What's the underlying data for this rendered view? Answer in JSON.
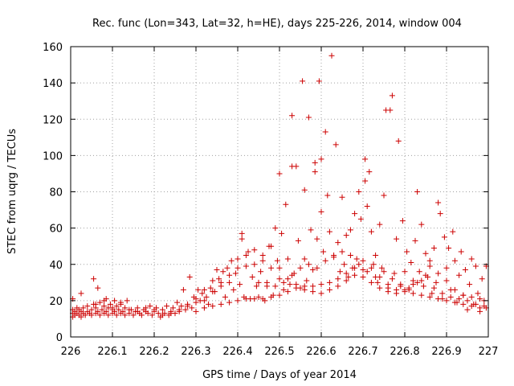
{
  "chart_data": {
    "type": "scatter",
    "title": "Rec. func (Lon=343, Lat=32, h=HE), days 225-226, 2014, window 004",
    "xlabel": "GPS time / Days of year 2014",
    "ylabel": "STEC from uqrg / TECUs",
    "xlim": [
      226,
      227
    ],
    "ylim": [
      0,
      160
    ],
    "xticks": [
      "226",
      "226.1",
      "226.2",
      "226.3",
      "226.4",
      "226.5",
      "226.6",
      "226.7",
      "226.8",
      "226.9",
      "227"
    ],
    "yticks": [
      "0",
      "20",
      "40",
      "60",
      "80",
      "100",
      "120",
      "140",
      "160"
    ],
    "grid": true,
    "marker": "plus",
    "color": "#cc0000",
    "points": [
      [
        226.005,
        11
      ],
      [
        226.005,
        13
      ],
      [
        226.005,
        15
      ],
      [
        226.005,
        21
      ],
      [
        226.01,
        12
      ],
      [
        226.01,
        14
      ],
      [
        226.015,
        13
      ],
      [
        226.015,
        16
      ],
      [
        226.02,
        12
      ],
      [
        226.02,
        15
      ],
      [
        226.025,
        11
      ],
      [
        226.025,
        14
      ],
      [
        226.025,
        24
      ],
      [
        226.03,
        13
      ],
      [
        226.03,
        16
      ],
      [
        226.035,
        12
      ],
      [
        226.04,
        14
      ],
      [
        226.04,
        17
      ],
      [
        226.045,
        13
      ],
      [
        226.05,
        12
      ],
      [
        226.05,
        15
      ],
      [
        226.055,
        32
      ],
      [
        226.055,
        18
      ],
      [
        226.06,
        13
      ],
      [
        226.06,
        16
      ],
      [
        226.065,
        14
      ],
      [
        226.065,
        27
      ],
      [
        226.07,
        12
      ],
      [
        226.07,
        19
      ],
      [
        226.075,
        15
      ],
      [
        226.08,
        13
      ],
      [
        226.08,
        17
      ],
      [
        226.085,
        14
      ],
      [
        226.085,
        21
      ],
      [
        226.09,
        12
      ],
      [
        226.09,
        16
      ],
      [
        226.095,
        18
      ],
      [
        226.1,
        13
      ],
      [
        226.1,
        15
      ],
      [
        226.105,
        14
      ],
      [
        226.105,
        20
      ],
      [
        226.11,
        12
      ],
      [
        226.11,
        17
      ],
      [
        226.115,
        15
      ],
      [
        226.12,
        13
      ],
      [
        226.12,
        19
      ],
      [
        226.125,
        14
      ],
      [
        226.13,
        12
      ],
      [
        226.13,
        16
      ],
      [
        226.135,
        20
      ],
      [
        226.14,
        13
      ],
      [
        226.145,
        15
      ],
      [
        226.15,
        12
      ],
      [
        226.155,
        14
      ],
      [
        226.16,
        16
      ],
      [
        226.165,
        13
      ],
      [
        226.17,
        12
      ],
      [
        226.175,
        15
      ],
      [
        226.18,
        14
      ],
      [
        226.185,
        13
      ],
      [
        226.19,
        17
      ],
      [
        226.195,
        12
      ],
      [
        226.2,
        14
      ],
      [
        226.205,
        16
      ],
      [
        226.21,
        13
      ],
      [
        226.215,
        11
      ],
      [
        226.22,
        15
      ],
      [
        226.225,
        13
      ],
      [
        226.23,
        17
      ],
      [
        226.235,
        12
      ],
      [
        226.24,
        14
      ],
      [
        226.245,
        16
      ],
      [
        226.25,
        13
      ],
      [
        226.255,
        19
      ],
      [
        226.26,
        14
      ],
      [
        226.265,
        17
      ],
      [
        226.27,
        26
      ],
      [
        226.275,
        15
      ],
      [
        226.28,
        18
      ],
      [
        226.285,
        33
      ],
      [
        226.29,
        16
      ],
      [
        226.295,
        22
      ],
      [
        226.3,
        19
      ],
      [
        226.305,
        26
      ],
      [
        226.31,
        20
      ],
      [
        226.315,
        24
      ],
      [
        226.32,
        26
      ],
      [
        226.325,
        22
      ],
      [
        226.33,
        18
      ],
      [
        226.335,
        27
      ],
      [
        226.34,
        31
      ],
      [
        226.345,
        25
      ],
      [
        226.35,
        37
      ],
      [
        226.355,
        32
      ],
      [
        226.36,
        28
      ],
      [
        226.365,
        36
      ],
      [
        226.37,
        22
      ],
      [
        226.375,
        38
      ],
      [
        226.38,
        30
      ],
      [
        226.385,
        42
      ],
      [
        226.39,
        26
      ],
      [
        226.395,
        35
      ],
      [
        226.4,
        43
      ],
      [
        226.405,
        29
      ],
      [
        226.41,
        57
      ],
      [
        226.41,
        54
      ],
      [
        226.415,
        22
      ],
      [
        226.42,
        39
      ],
      [
        226.425,
        47
      ],
      [
        226.43,
        21
      ],
      [
        226.435,
        33
      ],
      [
        226.44,
        40
      ],
      [
        226.445,
        28
      ],
      [
        226.45,
        22
      ],
      [
        226.455,
        36
      ],
      [
        226.46,
        45
      ],
      [
        226.465,
        20
      ],
      [
        226.47,
        30
      ],
      [
        226.475,
        50
      ],
      [
        226.48,
        38
      ],
      [
        226.485,
        23
      ],
      [
        226.49,
        60
      ],
      [
        226.495,
        42
      ],
      [
        226.5,
        90
      ],
      [
        226.5,
        32
      ],
      [
        226.505,
        57
      ],
      [
        226.51,
        26
      ],
      [
        226.515,
        73
      ],
      [
        226.52,
        43
      ],
      [
        226.525,
        29
      ],
      [
        226.53,
        122
      ],
      [
        226.53,
        94
      ],
      [
        226.535,
        35
      ],
      [
        226.54,
        94
      ],
      [
        226.545,
        53
      ],
      [
        226.55,
        27
      ],
      [
        226.555,
        141
      ],
      [
        226.56,
        81
      ],
      [
        226.56,
        43
      ],
      [
        226.565,
        31
      ],
      [
        226.57,
        121
      ],
      [
        226.575,
        59
      ],
      [
        226.58,
        37
      ],
      [
        226.585,
        91
      ],
      [
        226.585,
        96
      ],
      [
        226.59,
        54
      ],
      [
        226.595,
        141
      ],
      [
        226.6,
        98
      ],
      [
        226.6,
        69
      ],
      [
        226.605,
        47
      ],
      [
        226.61,
        113
      ],
      [
        226.615,
        78
      ],
      [
        226.62,
        58
      ],
      [
        226.625,
        155
      ],
      [
        226.63,
        45
      ],
      [
        226.635,
        106
      ],
      [
        226.64,
        52
      ],
      [
        226.645,
        36
      ],
      [
        226.65,
        77
      ],
      [
        226.655,
        40
      ],
      [
        226.66,
        56
      ],
      [
        226.665,
        33
      ],
      [
        226.67,
        59
      ],
      [
        226.675,
        38
      ],
      [
        226.68,
        68
      ],
      [
        226.685,
        43
      ],
      [
        226.69,
        80
      ],
      [
        226.695,
        65
      ],
      [
        226.7,
        33
      ],
      [
        226.705,
        98
      ],
      [
        226.705,
        86
      ],
      [
        226.71,
        72
      ],
      [
        226.715,
        91
      ],
      [
        226.72,
        58
      ],
      [
        226.725,
        40
      ],
      [
        226.73,
        45
      ],
      [
        226.735,
        30
      ],
      [
        226.74,
        62
      ],
      [
        226.745,
        38
      ],
      [
        226.75,
        78
      ],
      [
        226.755,
        125
      ],
      [
        226.76,
        27
      ],
      [
        226.765,
        125
      ],
      [
        226.77,
        133
      ],
      [
        226.775,
        35
      ],
      [
        226.78,
        54
      ],
      [
        226.785,
        108
      ],
      [
        226.79,
        29
      ],
      [
        226.795,
        64
      ],
      [
        226.8,
        36
      ],
      [
        226.805,
        47
      ],
      [
        226.81,
        27
      ],
      [
        226.815,
        41
      ],
      [
        226.82,
        31
      ],
      [
        226.825,
        53
      ],
      [
        226.83,
        80
      ],
      [
        226.835,
        36
      ],
      [
        226.84,
        62
      ],
      [
        226.845,
        28
      ],
      [
        226.85,
        46
      ],
      [
        226.855,
        33
      ],
      [
        226.86,
        42
      ],
      [
        226.865,
        24
      ],
      [
        226.87,
        49
      ],
      [
        226.875,
        30
      ],
      [
        226.88,
        74
      ],
      [
        226.885,
        68
      ],
      [
        226.89,
        21
      ],
      [
        226.895,
        55
      ],
      [
        226.9,
        38
      ],
      [
        226.905,
        49
      ],
      [
        226.91,
        26
      ],
      [
        226.915,
        58
      ],
      [
        226.92,
        42
      ],
      [
        226.925,
        19
      ],
      [
        226.93,
        34
      ],
      [
        226.935,
        47
      ],
      [
        226.94,
        23
      ],
      [
        226.945,
        37
      ],
      [
        226.95,
        15
      ],
      [
        226.955,
        29
      ],
      [
        226.96,
        43
      ],
      [
        226.965,
        18
      ],
      [
        226.97,
        39
      ],
      [
        226.975,
        24
      ],
      [
        226.98,
        14
      ],
      [
        226.985,
        32
      ],
      [
        226.99,
        20
      ],
      [
        226.995,
        39
      ],
      [
        226.995,
        16
      ],
      [
        226.3,
        14
      ],
      [
        226.32,
        16
      ],
      [
        226.34,
        17
      ],
      [
        226.36,
        18
      ],
      [
        226.38,
        19
      ],
      [
        226.4,
        20
      ],
      [
        226.42,
        21
      ],
      [
        226.44,
        21
      ],
      [
        226.46,
        21
      ],
      [
        226.48,
        22
      ],
      [
        226.5,
        23
      ],
      [
        226.52,
        25
      ],
      [
        226.54,
        27
      ],
      [
        226.56,
        28
      ],
      [
        226.58,
        28
      ],
      [
        226.6,
        29
      ],
      [
        226.62,
        30
      ],
      [
        226.64,
        32
      ],
      [
        226.66,
        35
      ],
      [
        226.68,
        38
      ],
      [
        226.7,
        42
      ],
      [
        226.72,
        38
      ],
      [
        226.74,
        33
      ],
      [
        226.76,
        29
      ],
      [
        226.78,
        26
      ],
      [
        226.8,
        25
      ],
      [
        226.82,
        24
      ],
      [
        226.84,
        23
      ],
      [
        226.86,
        22
      ],
      [
        226.88,
        21
      ],
      [
        226.9,
        20
      ],
      [
        226.92,
        19
      ],
      [
        226.94,
        18
      ],
      [
        226.96,
        17
      ],
      [
        226.98,
        16
      ],
      [
        226.45,
        30
      ],
      [
        226.47,
        28
      ],
      [
        226.49,
        28
      ],
      [
        226.51,
        30
      ],
      [
        226.53,
        34
      ],
      [
        226.55,
        38
      ],
      [
        226.57,
        40
      ],
      [
        226.59,
        38
      ],
      [
        226.61,
        42
      ],
      [
        226.63,
        44
      ],
      [
        226.65,
        47
      ],
      [
        226.67,
        45
      ],
      [
        226.69,
        40
      ],
      [
        226.71,
        36
      ],
      [
        226.73,
        33
      ],
      [
        226.75,
        36
      ],
      [
        226.77,
        32
      ],
      [
        226.79,
        28
      ],
      [
        226.81,
        26
      ],
      [
        226.83,
        30
      ],
      [
        226.85,
        34
      ],
      [
        226.87,
        27
      ],
      [
        226.89,
        24
      ],
      [
        226.91,
        22
      ],
      [
        226.93,
        21
      ],
      [
        226.95,
        20
      ],
      [
        226.97,
        18
      ],
      [
        226.99,
        17
      ],
      [
        226.06,
        18
      ],
      [
        226.08,
        20
      ],
      [
        226.1,
        16
      ],
      [
        226.12,
        18
      ],
      [
        226.14,
        15
      ],
      [
        226.16,
        14
      ],
      [
        226.18,
        16
      ],
      [
        226.2,
        15
      ],
      [
        226.22,
        12
      ],
      [
        226.24,
        13
      ],
      [
        226.26,
        15
      ],
      [
        226.28,
        17
      ],
      [
        226.3,
        21
      ],
      [
        226.32,
        20
      ],
      [
        226.34,
        25
      ],
      [
        226.36,
        30
      ],
      [
        226.38,
        34
      ],
      [
        226.4,
        38
      ],
      [
        226.42,
        45
      ],
      [
        226.44,
        48
      ],
      [
        226.46,
        42
      ],
      [
        226.48,
        50
      ],
      [
        226.5,
        38
      ],
      [
        226.52,
        32
      ],
      [
        226.54,
        29
      ],
      [
        226.56,
        26
      ],
      [
        226.58,
        25
      ],
      [
        226.6,
        24
      ],
      [
        226.62,
        26
      ],
      [
        226.64,
        28
      ],
      [
        226.66,
        31
      ],
      [
        226.68,
        34
      ],
      [
        226.7,
        37
      ],
      [
        226.72,
        30
      ],
      [
        226.74,
        27
      ],
      [
        226.76,
        25
      ],
      [
        226.78,
        24
      ],
      [
        226.8,
        26
      ],
      [
        226.82,
        29
      ],
      [
        226.84,
        31
      ],
      [
        226.86,
        39
      ],
      [
        226.88,
        35
      ],
      [
        226.9,
        31
      ],
      [
        226.92,
        26
      ],
      [
        226.94,
        23
      ],
      [
        226.96,
        22
      ],
      [
        226.98,
        21
      ]
    ]
  }
}
